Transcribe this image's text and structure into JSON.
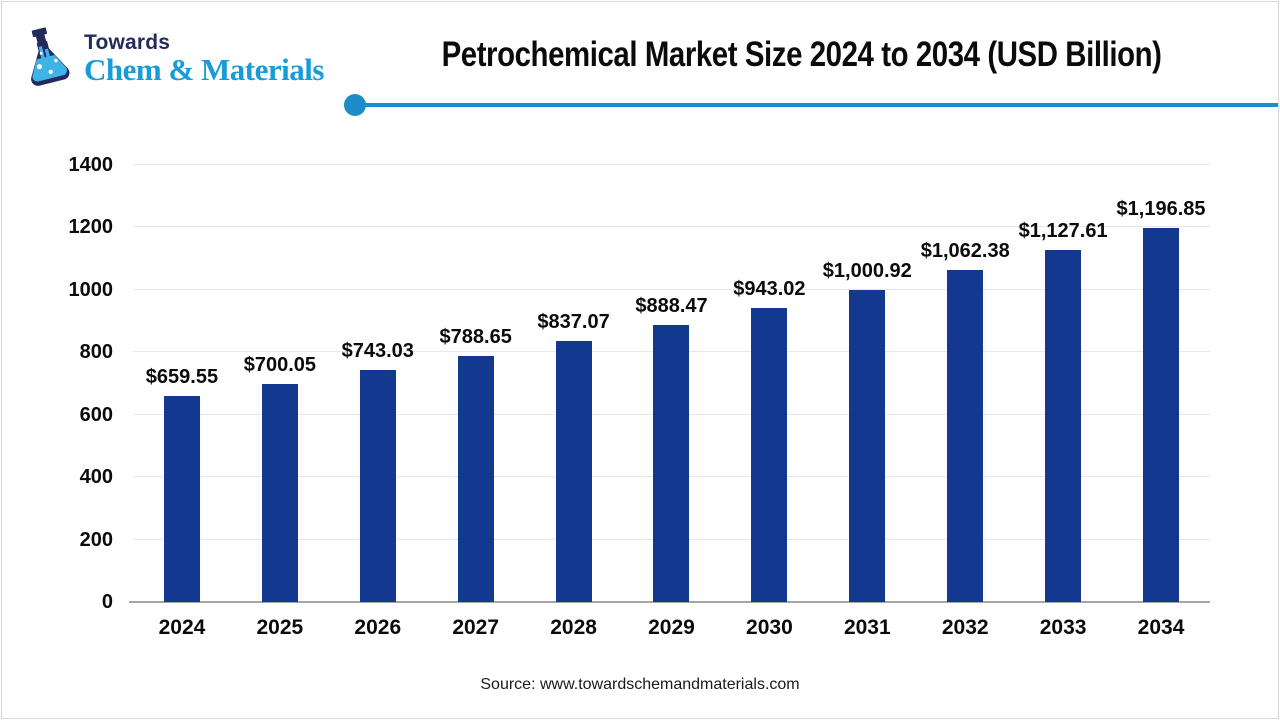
{
  "brand": {
    "name_top": "Towards",
    "name_bottom": "Chem & Materials"
  },
  "header": {
    "title": "Petrochemical Market Size 2024 to 2034 (USD Billion)"
  },
  "footer": {
    "source": "Source: www.towardschemandmaterials.com"
  },
  "colors": {
    "bar": "#12398e",
    "divider": "#1c8dc9",
    "logo_navy": "#232a5c",
    "logo_cyan": "#189cd8",
    "gridline": "#e8e8e8",
    "axis_line": "#a6a6a6"
  },
  "chart_data": {
    "type": "bar",
    "title": "Petrochemical Market Size 2024 to 2034 (USD Billion)",
    "categories": [
      "2024",
      "2025",
      "2026",
      "2027",
      "2028",
      "2029",
      "2030",
      "2031",
      "2032",
      "2033",
      "2034"
    ],
    "values": [
      659.55,
      700.05,
      743.03,
      788.65,
      837.07,
      888.47,
      943.02,
      1000.92,
      1062.38,
      1127.61,
      1196.85
    ],
    "value_labels": [
      "$659.55",
      "$700.05",
      "$743.03",
      "$788.65",
      "$837.07",
      "$888.47",
      "$943.02",
      "$1,000.92",
      "$1,062.38",
      "$1,127.61",
      "$1,196.85"
    ],
    "unit": "USD Billion",
    "xlabel": "",
    "ylabel": "",
    "ylim": [
      0,
      1400
    ],
    "yticks": [
      0,
      200,
      400,
      600,
      800,
      1000,
      1200,
      1400
    ],
    "grid": true,
    "legend": false,
    "bar_color": "#12398e"
  }
}
